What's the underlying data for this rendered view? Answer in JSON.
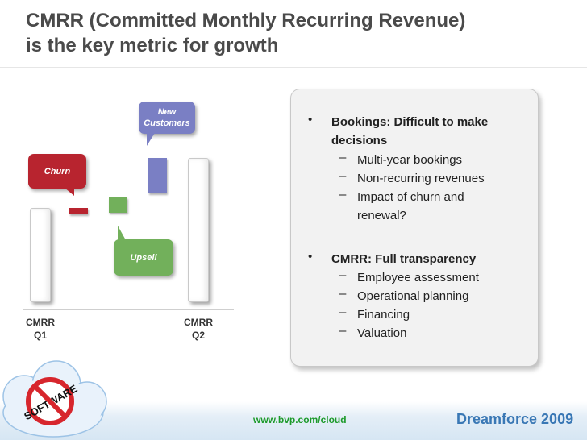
{
  "title": {
    "line1": "CMRR (Committed Monthly Recurring Revenue)",
    "line2": "is the key metric for growth"
  },
  "diagram": {
    "callouts": {
      "new_customers": {
        "line1": "New",
        "line2": "Customers",
        "color": "#7a7fc4"
      },
      "churn": {
        "label": "Churn",
        "color": "#b8242f"
      },
      "upsell": {
        "label": "Upsell",
        "color": "#72b05b"
      }
    },
    "axis": {
      "q1": {
        "line1": "CMRR",
        "line2": "Q1"
      },
      "q2": {
        "line1": "CMRR",
        "line2": "Q2"
      }
    }
  },
  "panel": {
    "sections": [
      {
        "bullet": "•",
        "heading_line1": "Bookings: Difficult to make",
        "heading_line2": "decisions",
        "items": [
          "Multi-year bookings",
          "Non-recurring revenues",
          "Impact of churn and"
        ],
        "item_continuation": "renewal?"
      },
      {
        "bullet": "•",
        "heading_line1": "CMRR: Full transparency",
        "items": [
          "Employee assessment",
          "Operational planning",
          "Financing",
          "Valuation"
        ]
      }
    ],
    "dash": "–"
  },
  "footer": {
    "url": "www.bvp.com/cloud",
    "brand": "Dreamforce 2009",
    "logo_text": "SOFTWARE"
  }
}
